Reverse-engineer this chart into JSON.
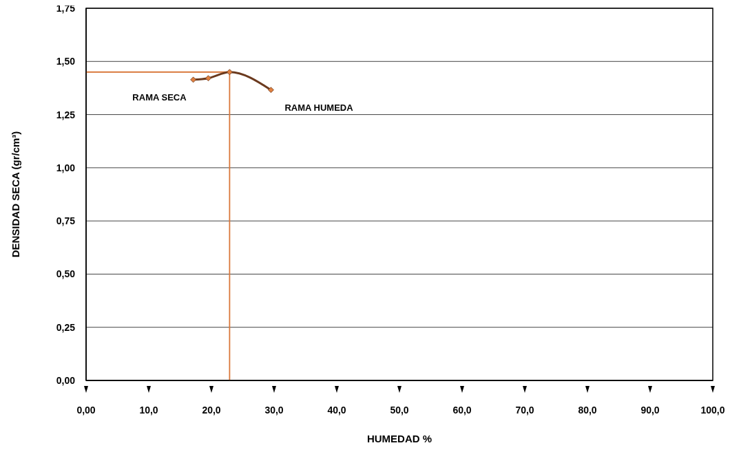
{
  "chart_data": {
    "type": "line",
    "xlabel": "HUMEDAD %",
    "ylabel": "DENSIDAD SECA (gr/cm³)",
    "series": [
      {
        "color": "#6b3a1e",
        "x": [
          17.1,
          19.5,
          22.9,
          29.5
        ],
        "values": [
          1.414,
          1.421,
          1.45,
          1.366
        ]
      }
    ],
    "marker": "diamond",
    "xlim": [
      0,
      100
    ],
    "xticks": [
      {
        "value": 0,
        "label": "0,00"
      },
      {
        "value": 10,
        "label": "10,0"
      },
      {
        "value": 20,
        "label": "20,0"
      },
      {
        "value": 30,
        "label": "30,0"
      },
      {
        "value": 40,
        "label": "40,0"
      },
      {
        "value": 50,
        "label": "50,0"
      },
      {
        "value": 60,
        "label": "60,0"
      },
      {
        "value": 70,
        "label": "70,0"
      },
      {
        "value": 80,
        "label": "80,0"
      },
      {
        "value": 90,
        "label": "90,0"
      },
      {
        "value": 100,
        "label": "100,0"
      }
    ],
    "ylim": [
      0,
      1.75
    ],
    "yticks": [
      {
        "value": 0,
        "label": "0,00"
      },
      {
        "value": 0.25,
        "label": "0,25"
      },
      {
        "value": 0.5,
        "label": "0,50"
      },
      {
        "value": 0.75,
        "label": "0,75"
      },
      {
        "value": 1,
        "label": "1,00"
      },
      {
        "value": 1.25,
        "label": "1,25"
      },
      {
        "value": 1.5,
        "label": "1,50"
      },
      {
        "value": 1.75,
        "label": "1,75"
      }
    ],
    "grid": "y",
    "ref_lines": [
      {
        "axis": "y",
        "value": 1.45,
        "color": "#d9773a"
      },
      {
        "axis": "x",
        "value": 22.9,
        "color": "#d9773a"
      }
    ],
    "annotations": [
      "RAMA SECA",
      "RAMA HUMEDA"
    ]
  }
}
